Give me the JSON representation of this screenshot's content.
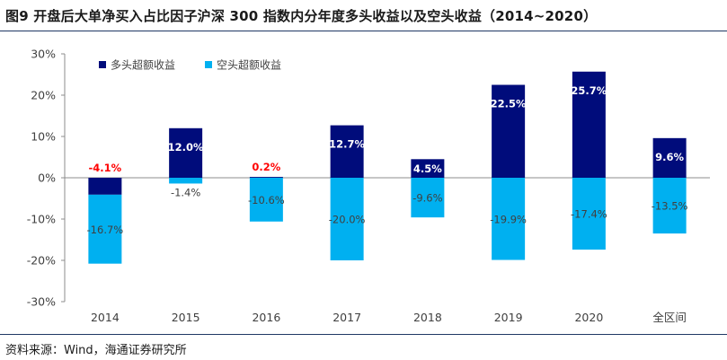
{
  "figure": {
    "title": "图9  开盘后大单净买入占比因子沪深 300 指数内分年度多头收益以及空头收益（2014~2020）",
    "source": "资料来源：Wind，海通证券研究所"
  },
  "colors": {
    "long": "#000c7b",
    "short": "#00b0f0",
    "negative_label": "#ff0000",
    "positive_label_light": "#ffffff",
    "axis_text": "#404040"
  },
  "chart_data": {
    "type": "bar",
    "stacked": true,
    "title": "",
    "xlabel": "",
    "ylabel": "",
    "categories": [
      "2014",
      "2015",
      "2016",
      "2017",
      "2018",
      "2019",
      "2020",
      "全区间"
    ],
    "series": [
      {
        "name": "多头超额收益",
        "values": [
          -4.1,
          12.0,
          0.2,
          12.7,
          4.5,
          22.5,
          25.7,
          9.6
        ]
      },
      {
        "name": "空头超额收益",
        "values": [
          -16.7,
          -1.4,
          -10.6,
          -20.0,
          -9.6,
          -19.9,
          -17.4,
          -13.5
        ]
      }
    ],
    "labels": {
      "long": [
        "-4.1%",
        "12.0%",
        "0.2%",
        "12.7%",
        "4.5%",
        "22.5%",
        "25.7%",
        "9.6%"
      ],
      "short": [
        "-16.7%",
        "-1.4%",
        "-10.6%",
        "-20.0%",
        "-9.6%",
        "-19.9%",
        "-17.4%",
        "-13.5%"
      ]
    },
    "ylim": [
      -30,
      30
    ],
    "yticks": [
      -30,
      -20,
      -10,
      0,
      10,
      20,
      30
    ],
    "ytick_labels": [
      "-30%",
      "-20%",
      "-10%",
      "0%",
      "10%",
      "20%",
      "30%"
    ],
    "legend_position": "top-left",
    "grid": false
  }
}
